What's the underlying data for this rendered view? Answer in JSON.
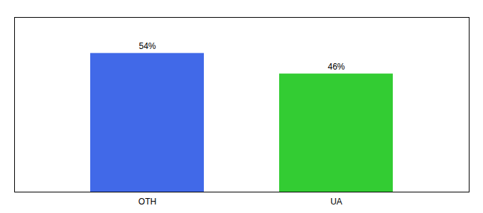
{
  "chart_data": {
    "type": "bar",
    "categories": [
      "OTH",
      "UA"
    ],
    "values": [
      54,
      46
    ],
    "value_labels": [
      "54%",
      "46%"
    ],
    "colors": [
      "#4169e8",
      "#33cc33"
    ],
    "ylim": [
      0,
      68
    ],
    "data_labels": true,
    "tick_labels": "x",
    "grid": false
  }
}
